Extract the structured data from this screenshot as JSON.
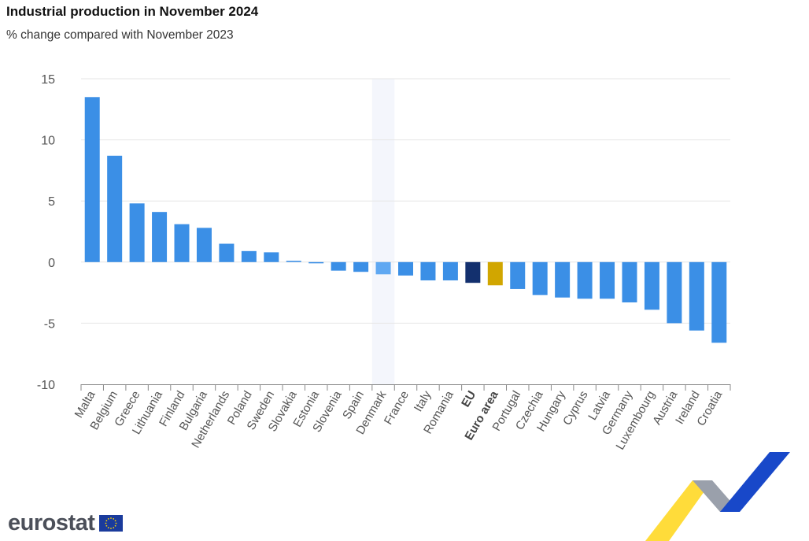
{
  "header": {
    "title": "Industrial production in November 2024",
    "subtitle": "% change compared with November 2023"
  },
  "logo": {
    "text": "eurostat",
    "flag_icon": "eu-flag-icon"
  },
  "colors": {
    "bar": "#3b8fe6",
    "highlight_bar": "#5fa8f2",
    "eu_bar": "#13306e",
    "euro_area_bar": "#d1a600",
    "highlight_band": "#f4f6fc",
    "grid": "#e6e6e6",
    "axis": "#888888"
  },
  "chart_data": {
    "type": "bar",
    "title": "Industrial production in November 2024",
    "subtitle": "% change compared with November 2023",
    "xlabel": "",
    "ylabel": "",
    "ylim": [
      -10,
      15
    ],
    "yticks": [
      15,
      10,
      5,
      0,
      -5,
      -10
    ],
    "grid": true,
    "legend": "none",
    "highlighted_category": "Denmark",
    "bold_categories": [
      "EU",
      "Euro area"
    ],
    "categories": [
      "Malta",
      "Belgium",
      "Greece",
      "Lithuania",
      "Finland",
      "Bulgaria",
      "Netherlands",
      "Poland",
      "Sweden",
      "Slovakia",
      "Estonia",
      "Slovenia",
      "Spain",
      "Denmark",
      "France",
      "Italy",
      "Romania",
      "EU",
      "Euro area",
      "Portugal",
      "Czechia",
      "Hungary",
      "Cyprus",
      "Latvia",
      "Germany",
      "Luxembourg",
      "Austria",
      "Ireland",
      "Croatia"
    ],
    "values": [
      13.5,
      8.7,
      4.8,
      4.1,
      3.1,
      2.8,
      1.5,
      0.9,
      0.8,
      0.1,
      -0.1,
      -0.7,
      -0.8,
      -1.0,
      -1.1,
      -1.5,
      -1.5,
      -1.7,
      -1.9,
      -2.2,
      -2.7,
      -2.9,
      -3.0,
      -3.0,
      -3.3,
      -3.9,
      -5.0,
      -5.6,
      -6.6
    ]
  }
}
